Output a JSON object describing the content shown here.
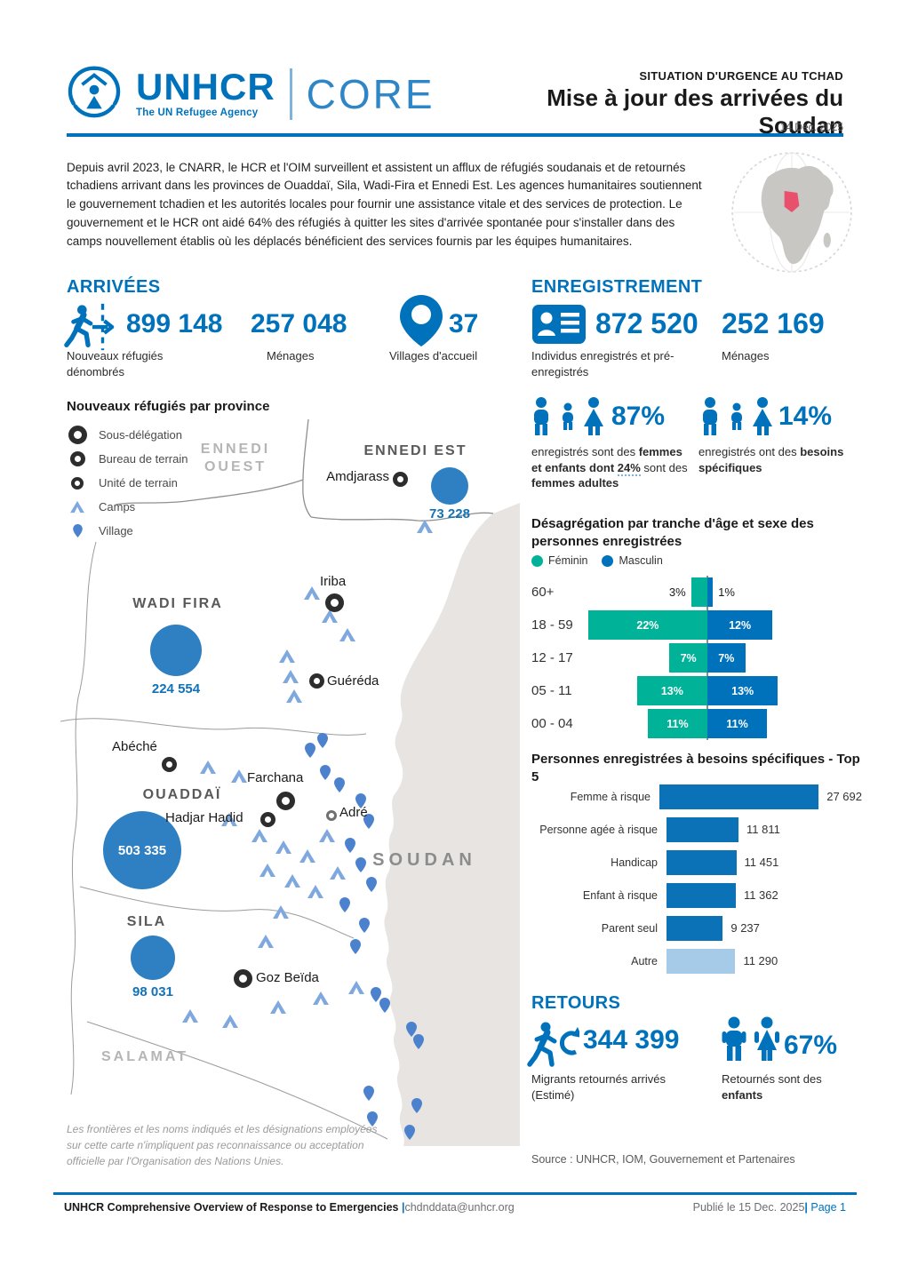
{
  "header": {
    "brand": "UNHCR",
    "brand_sub": "The UN Refugee Agency",
    "brand_right": "CORE",
    "kicker": "SITUATION D'URGENCE AU TCHAD",
    "title": "Mise à jour des arrivées du Soudan",
    "date": "14 Dec. 2025"
  },
  "intro": "Depuis avril 2023, le CNARR, le HCR et l'OIM surveillent et assistent un afflux de réfugiés soudanais et de retournés tchadiens arrivant dans les provinces de Ouaddaï, Sila, Wadi-Fira et Ennedi Est. Les agences humanitaires soutiennent le gouvernement tchadien et les autorités locales pour fournir une assistance vitale et des services de protection. Le gouvernement et le HCR ont aidé 64% des réfugiés à quitter les sites d'arrivée spontanée pour s'installer dans des camps nouvellement établis où les déplacés bénéficient des services fournis par les équipes humanitaires.",
  "arrivees": {
    "heading": "ARRIVÉES",
    "stats": [
      {
        "value": "899 148",
        "label": "Nouveaux réfugiés dénombrés"
      },
      {
        "value": "257 048",
        "label": "Ménages"
      },
      {
        "value": "37",
        "label": "Villages d'accueil"
      }
    ]
  },
  "enregistrement": {
    "heading": "ENREGISTREMENT",
    "stats": [
      {
        "value": "872 520",
        "label": "Individus enregistrés et pré-enregistrés"
      },
      {
        "value": "252 169",
        "label": "Ménages"
      }
    ],
    "pct_women": {
      "value": "87%",
      "p1": "enregistrés sont des ",
      "p2": "femmes et enfants dont ",
      "p3": "24%",
      "p4": " sont des ",
      "p5": "femmes adultes"
    },
    "pct_needs": {
      "value": "14%",
      "p1": "enregistrés ont des ",
      "p2": "besoins spécifiques"
    }
  },
  "charts": {
    "pyramid": {
      "title": "Désagrégation par tranche d'âge et sexe des personnes enregistrées",
      "legend": [
        {
          "label": "Féminin",
          "color": "#00B398"
        },
        {
          "label": "Masculin",
          "color": "#0072BC"
        }
      ],
      "rows": [
        {
          "group": "60+",
          "f_label": "3%",
          "m_label": "1%"
        },
        {
          "group": "18 - 59",
          "f_label": "22%",
          "m_label": "12%"
        },
        {
          "group": "12 - 17",
          "f_label": "7%",
          "m_label": "7%"
        },
        {
          "group": "05 - 11",
          "f_label": "13%",
          "m_label": "13%"
        },
        {
          "group": "00 - 04",
          "f_label": "11%",
          "m_label": "11%"
        }
      ]
    },
    "top5": {
      "title": "Personnes enregistrées à besoins spécifiques - Top 5",
      "rows": [
        {
          "label": "Femme à risque",
          "value_label": "27 692"
        },
        {
          "label": "Personne agée à risque",
          "value_label": "11 811"
        },
        {
          "label": "Handicap",
          "value_label": "11 451"
        },
        {
          "label": "Enfant à risque",
          "value_label": "11 362"
        },
        {
          "label": "Parent seul",
          "value_label": "9 237"
        },
        {
          "label": "Autre",
          "value_label": "11 290"
        }
      ]
    }
  },
  "map": {
    "legend_title": "Nouveaux réfugiés par province",
    "legend": [
      "Sous-délégation",
      "Bureau de terrain",
      "Unité de terrain",
      "Camps",
      "Village"
    ],
    "provinces": [
      {
        "name": "ENNEDI EST",
        "value_label": "73 228"
      },
      {
        "name": "WADI FIRA",
        "value_label": "224 554"
      },
      {
        "name": "OUADDAÏ",
        "value_label": "503 335"
      },
      {
        "name": "SILA",
        "value_label": "98 031"
      }
    ],
    "neighbors": {
      "ennedi_ouest": "ENNEDI OUEST",
      "salamat": "SALAMAT",
      "soudan": "SOUDAN"
    },
    "cities": [
      {
        "name": "Amdjarass",
        "type": "bureau-de-terrain"
      },
      {
        "name": "Iriba",
        "type": "sous-delegation"
      },
      {
        "name": "Guéréda",
        "type": "bureau-de-terrain"
      },
      {
        "name": "Abéché",
        "type": "bureau-de-terrain"
      },
      {
        "name": "Farchana",
        "type": "sous-delegation"
      },
      {
        "name": "Hadjar Hadid",
        "type": "bureau-de-terrain"
      },
      {
        "name": "Adré",
        "type": "unite-de-terrain"
      },
      {
        "name": "Goz Beïda",
        "type": "sous-delegation"
      }
    ],
    "disclaimer": "Les frontières et les noms indiqués et les désignations employées sur cette carte n'impliquent pas reconnaissance ou acceptation officielle par l'Organisation des Nations Unies."
  },
  "retours": {
    "heading": "RETOURS",
    "migrants": {
      "value": "344 399",
      "label": "Migrants retournés arrivés (Estimé)"
    },
    "children": {
      "value": "67%",
      "p1": "Retournés sont des ",
      "p2": "enfants"
    },
    "source_label": "Source :",
    "source_text": " UNHCR, IOM, Gouvernement et Partenaires"
  },
  "footer": {
    "title": "UNHCR Comprehensive Overview of Response to Emergencies ",
    "sep": "|",
    "email": "chdnddata@unhcr.org",
    "published": "Publié le 15 Dec. 2025",
    "page": "Page 1"
  },
  "colors": {
    "unhcr_blue": "#0072BC",
    "feminin_teal": "#00B398",
    "masculin_blue": "#0072BC",
    "autre_light_blue": "#A6CBE8",
    "bubble_blue": "#2E80C2",
    "camp_blue": "#7FA8DF",
    "village_pin_blue": "#4C82CD",
    "chad_highlight_red": "#E8506B",
    "sudan_fill_gray": "#E7E4E1"
  },
  "chart_data": [
    {
      "type": "bar",
      "orientation": "population-pyramid",
      "title": "Désagrégation par tranche d'âge et sexe des personnes enregistrées",
      "categories": [
        "60+",
        "18 - 59",
        "12 - 17",
        "05 - 11",
        "00 - 04"
      ],
      "series": [
        {
          "name": "Féminin",
          "values": [
            3,
            22,
            7,
            13,
            11
          ]
        },
        {
          "name": "Masculin",
          "values": [
            1,
            12,
            7,
            13,
            11
          ]
        }
      ],
      "unit": "%",
      "legend_position": "top",
      "grid": false
    },
    {
      "type": "bar",
      "orientation": "horizontal",
      "title": "Personnes enregistrées à besoins spécifiques - Top 5",
      "categories": [
        "Femme à risque",
        "Personne agée à risque",
        "Handicap",
        "Enfant à risque",
        "Parent seul",
        "Autre"
      ],
      "values": [
        27692,
        11811,
        11451,
        11362,
        9237,
        11290
      ],
      "grid": false
    },
    {
      "type": "bubble-map",
      "title": "Nouveaux réfugiés par province",
      "categories": [
        "ENNEDI EST",
        "WADI FIRA",
        "OUADDAÏ",
        "SILA"
      ],
      "values": [
        73228,
        224554,
        503335,
        98031
      ]
    }
  ]
}
